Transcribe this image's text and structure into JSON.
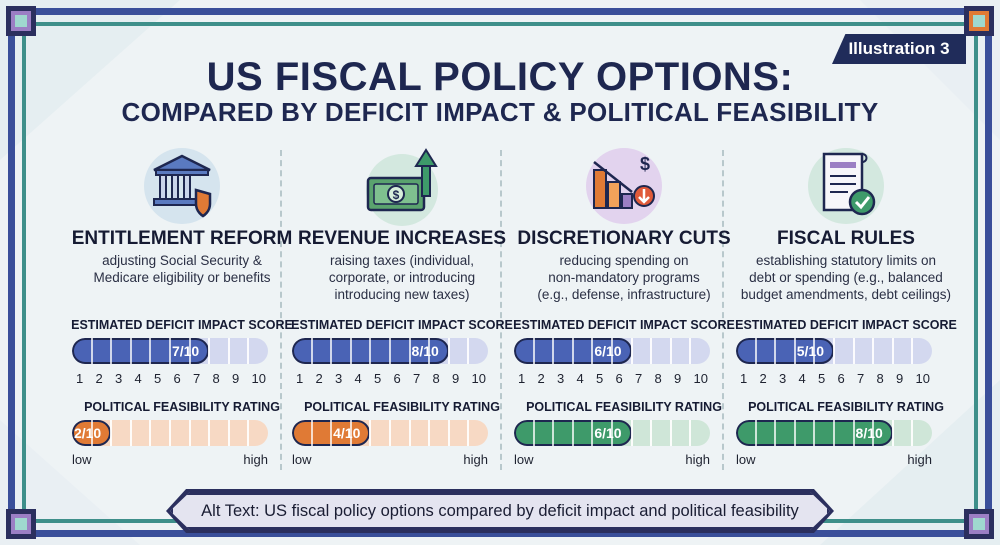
{
  "badge": "Illustration 3",
  "title_line1": "US FISCAL POLICY OPTIONS:",
  "title_line2": "COMPARED BY DEFICIT IMPACT & POLITICAL FEASIBILITY",
  "deficit_label": "ESTIMATED DEFICIT IMPACT SCORE",
  "feasibility_label": "POLITICAL FEASIBILITY RATING",
  "scale_ticks": [
    "1",
    "2",
    "3",
    "4",
    "5",
    "6",
    "7",
    "8",
    "9",
    "10"
  ],
  "low_label": "low",
  "high_label": "high",
  "columns": [
    {
      "title": "ENTITLEMENT REFORM",
      "desc_lines": [
        "adjusting Social Security &",
        "Medicare eligibility or benefits"
      ],
      "deficit_score": 7,
      "deficit_text": "7/10",
      "feasibility_score": 2,
      "feasibility_text": "2/10",
      "icon": "bank-shield-icon",
      "feasibility_color": "orange"
    },
    {
      "title": "REVENUE INCREASES",
      "desc_lines": [
        "raising taxes (individual,",
        "corporate, or introducing",
        "introducing new taxes)"
      ],
      "deficit_score": 8,
      "deficit_text": "8/10",
      "feasibility_score": 4,
      "feasibility_text": "4/10",
      "icon": "money-arrow-up-icon",
      "feasibility_color": "orange"
    },
    {
      "title": "DISCRETIONARY CUTS",
      "desc_lines": [
        "reducing spending on",
        "non-mandatory programs",
        "(e.g., defense, infrastructure)"
      ],
      "deficit_score": 6,
      "deficit_text": "6/10",
      "feasibility_score": 6,
      "feasibility_text": "6/10",
      "icon": "chart-down-icon",
      "feasibility_color": "green"
    },
    {
      "title": "FISCAL RULES",
      "desc_lines": [
        "establishing statutory limits on",
        "debt or spending (e.g., balanced",
        "budget amendments, debt ceilings)"
      ],
      "deficit_score": 5,
      "deficit_text": "5/10",
      "feasibility_score": 8,
      "feasibility_text": "8/10",
      "icon": "document-check-icon",
      "feasibility_color": "green"
    }
  ],
  "alt_text": "Alt Text: US fiscal policy options compared by deficit impact and political feasibility",
  "colors": {
    "navy": "#1e2750",
    "blue_fill": "#4a63b5",
    "blue_track": "#d3d8ef",
    "orange_fill": "#e07a35",
    "orange_track": "#f7d9c4",
    "green_fill": "#3e9a6a",
    "green_track": "#cfe6d8"
  }
}
